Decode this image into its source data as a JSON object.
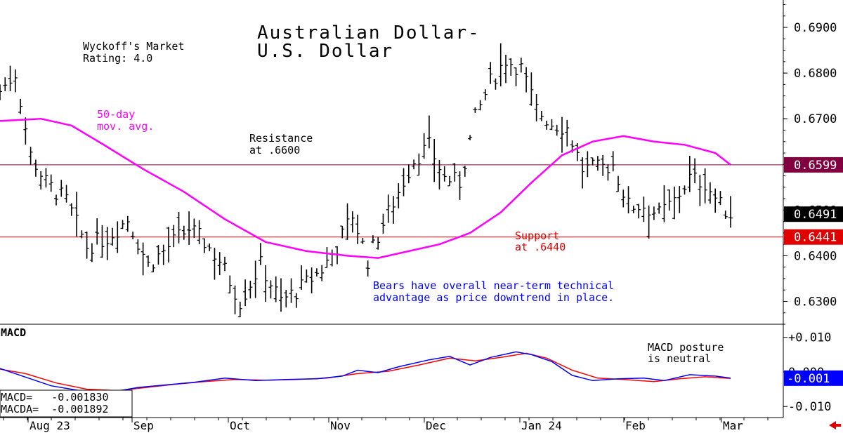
{
  "colors": {
    "price_bar": "#000000",
    "moving_average": "#ff00ff",
    "resistance_line": "#800040",
    "support_line": "#e00000",
    "macd_line": "#0000ff",
    "macda_line": "#ff0000",
    "annotation_blue": "#0000ff",
    "annotation_red": "#e00000"
  },
  "chart_data": {
    "type": "bar",
    "title": "Australian Dollar-\nU.S. Dollar",
    "rating_text": "Wyckoff's Market\nRating: 4.0",
    "x_labels": [
      "Aug 23",
      "Sep",
      "Oct",
      "Nov",
      "Dec",
      "Jan 24",
      "Feb",
      "Mar"
    ],
    "y_price_ticks": [
      "0.6900",
      "0.6800",
      "0.6700",
      "0.6600",
      "0.6500",
      "0.6400",
      "0.6300"
    ],
    "price_ylim": [
      0.625,
      0.696
    ],
    "markers": [
      {
        "label": "0.6599",
        "value": 0.6599
      },
      {
        "label": "0.6491",
        "value": 0.6491
      },
      {
        "label": "0.6441",
        "value": 0.6441
      }
    ],
    "resistance": {
      "value": 0.6599,
      "label": "Resistance\nat .6600"
    },
    "support": {
      "value": 0.6441,
      "label": "Support\nat .6440"
    },
    "ma_label": "50-day\nmov. avg.",
    "commentary": "Bears have overall near-term technical\nadvantage as price downtrend in place.",
    "price_ohlc_anchors": [
      {
        "x": 0,
        "close": 0.676
      },
      {
        "x": 3,
        "close": 0.68
      },
      {
        "x": 6,
        "close": 0.662
      },
      {
        "x": 9,
        "close": 0.656
      },
      {
        "x": 13,
        "close": 0.652
      },
      {
        "x": 17,
        "close": 0.642
      },
      {
        "x": 21,
        "close": 0.644
      },
      {
        "x": 25,
        "close": 0.648
      },
      {
        "x": 29,
        "close": 0.638
      },
      {
        "x": 33,
        "close": 0.642
      },
      {
        "x": 37,
        "close": 0.646
      },
      {
        "x": 40,
        "close": 0.643
      },
      {
        "x": 43,
        "close": 0.639
      },
      {
        "x": 47,
        "close": 0.63
      },
      {
        "x": 51,
        "close": 0.638
      },
      {
        "x": 55,
        "close": 0.63
      },
      {
        "x": 59,
        "close": 0.633
      },
      {
        "x": 63,
        "close": 0.637
      },
      {
        "x": 66,
        "close": 0.642
      },
      {
        "x": 69,
        "close": 0.649
      },
      {
        "x": 72,
        "close": 0.639
      },
      {
        "x": 75,
        "close": 0.647
      },
      {
        "x": 78,
        "close": 0.654
      },
      {
        "x": 81,
        "close": 0.661
      },
      {
        "x": 84,
        "close": 0.664
      },
      {
        "x": 87,
        "close": 0.657
      },
      {
        "x": 90,
        "close": 0.656
      },
      {
        "x": 93,
        "close": 0.67
      },
      {
        "x": 96,
        "close": 0.678
      },
      {
        "x": 99,
        "close": 0.683
      },
      {
        "x": 102,
        "close": 0.681
      },
      {
        "x": 105,
        "close": 0.672
      },
      {
        "x": 108,
        "close": 0.669
      },
      {
        "x": 111,
        "close": 0.668
      },
      {
        "x": 114,
        "close": 0.659
      },
      {
        "x": 117,
        "close": 0.659
      },
      {
        "x": 120,
        "close": 0.66
      },
      {
        "x": 123,
        "close": 0.651
      },
      {
        "x": 126,
        "close": 0.651
      },
      {
        "x": 129,
        "close": 0.649
      },
      {
        "x": 132,
        "close": 0.652
      },
      {
        "x": 135,
        "close": 0.657
      },
      {
        "x": 138,
        "close": 0.656
      },
      {
        "x": 141,
        "close": 0.651
      },
      {
        "x": 143,
        "close": 0.6491
      }
    ],
    "ma_50day": [
      {
        "x": 0,
        "y": 0.6695
      },
      {
        "x": 8,
        "y": 0.67
      },
      {
        "x": 14,
        "y": 0.6685
      },
      {
        "x": 20,
        "y": 0.6645
      },
      {
        "x": 28,
        "y": 0.659
      },
      {
        "x": 36,
        "y": 0.654
      },
      {
        "x": 44,
        "y": 0.648
      },
      {
        "x": 52,
        "y": 0.643
      },
      {
        "x": 60,
        "y": 0.641
      },
      {
        "x": 68,
        "y": 0.64
      },
      {
        "x": 74,
        "y": 0.6395
      },
      {
        "x": 80,
        "y": 0.641
      },
      {
        "x": 86,
        "y": 0.6425
      },
      {
        "x": 92,
        "y": 0.645
      },
      {
        "x": 98,
        "y": 0.6495
      },
      {
        "x": 104,
        "y": 0.656
      },
      {
        "x": 110,
        "y": 0.662
      },
      {
        "x": 116,
        "y": 0.665
      },
      {
        "x": 122,
        "y": 0.6662
      },
      {
        "x": 128,
        "y": 0.665
      },
      {
        "x": 134,
        "y": 0.6643
      },
      {
        "x": 140,
        "y": 0.6625
      },
      {
        "x": 143,
        "y": 0.6599
      }
    ],
    "macd": {
      "title": "MACD",
      "y_ticks": [
        "+0.010",
        "0.000",
        "-0.010"
      ],
      "ylim": [
        -0.0132,
        0.0138
      ],
      "marker_label": "-0.001",
      "posture_text": "MACD posture\nis neutral",
      "readout_macd": "MACD=   -0.001830",
      "readout_macda": "MACDA=  -0.001892",
      "macd_line": [
        {
          "x": 0,
          "y": 0.001
        },
        {
          "x": 4,
          "y": -0.001
        },
        {
          "x": 10,
          "y": -0.004
        },
        {
          "x": 16,
          "y": -0.0055
        },
        {
          "x": 22,
          "y": -0.0058
        },
        {
          "x": 27,
          "y": -0.0045
        },
        {
          "x": 32,
          "y": -0.0038
        },
        {
          "x": 38,
          "y": -0.003
        },
        {
          "x": 44,
          "y": -0.0018
        },
        {
          "x": 50,
          "y": -0.0025
        },
        {
          "x": 56,
          "y": -0.0022
        },
        {
          "x": 62,
          "y": -0.002
        },
        {
          "x": 67,
          "y": -0.0012
        },
        {
          "x": 70,
          "y": 0.0005
        },
        {
          "x": 74,
          "y": -0.0002
        },
        {
          "x": 78,
          "y": 0.0015
        },
        {
          "x": 84,
          "y": 0.0035
        },
        {
          "x": 88,
          "y": 0.0045
        },
        {
          "x": 92,
          "y": 0.002
        },
        {
          "x": 96,
          "y": 0.0042
        },
        {
          "x": 101,
          "y": 0.0058
        },
        {
          "x": 104,
          "y": 0.005
        },
        {
          "x": 108,
          "y": 0.003
        },
        {
          "x": 112,
          "y": -0.001
        },
        {
          "x": 116,
          "y": -0.0025
        },
        {
          "x": 121,
          "y": -0.002
        },
        {
          "x": 126,
          "y": -0.0018
        },
        {
          "x": 130,
          "y": -0.0025
        },
        {
          "x": 135,
          "y": -0.0008
        },
        {
          "x": 140,
          "y": -0.0012
        },
        {
          "x": 143,
          "y": -0.0018
        }
      ],
      "macda_line": [
        {
          "x": 0,
          "y": 0.0008
        },
        {
          "x": 5,
          "y": -0.0005
        },
        {
          "x": 11,
          "y": -0.0032
        },
        {
          "x": 17,
          "y": -0.005
        },
        {
          "x": 23,
          "y": -0.0054
        },
        {
          "x": 28,
          "y": -0.0046
        },
        {
          "x": 34,
          "y": -0.0036
        },
        {
          "x": 40,
          "y": -0.0028
        },
        {
          "x": 46,
          "y": -0.0022
        },
        {
          "x": 52,
          "y": -0.0024
        },
        {
          "x": 58,
          "y": -0.0022
        },
        {
          "x": 64,
          "y": -0.0018
        },
        {
          "x": 70,
          "y": -0.0005
        },
        {
          "x": 76,
          "y": 0.0002
        },
        {
          "x": 82,
          "y": 0.002
        },
        {
          "x": 88,
          "y": 0.004
        },
        {
          "x": 93,
          "y": 0.0032
        },
        {
          "x": 98,
          "y": 0.0042
        },
        {
          "x": 103,
          "y": 0.0054
        },
        {
          "x": 107,
          "y": 0.004
        },
        {
          "x": 112,
          "y": 0.0005
        },
        {
          "x": 117,
          "y": -0.0018
        },
        {
          "x": 122,
          "y": -0.0022
        },
        {
          "x": 128,
          "y": -0.0028
        },
        {
          "x": 133,
          "y": -0.002
        },
        {
          "x": 138,
          "y": -0.0014
        },
        {
          "x": 143,
          "y": -0.0019
        }
      ]
    }
  }
}
